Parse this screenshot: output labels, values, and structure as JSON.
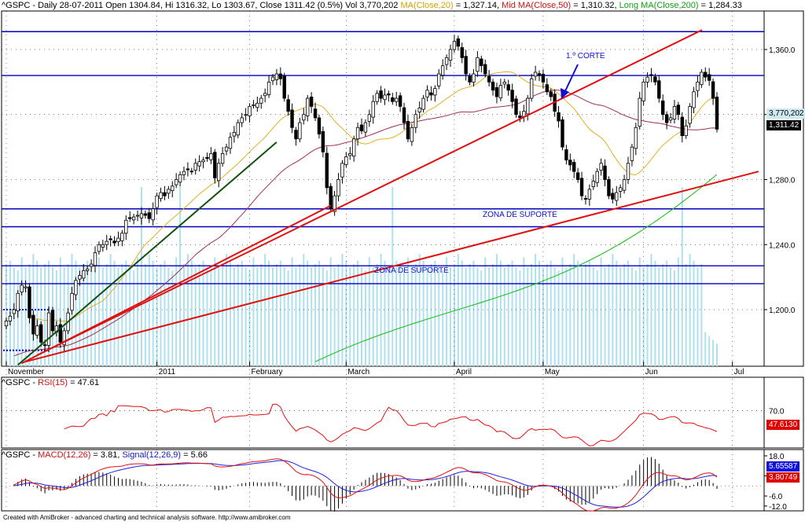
{
  "header_main": {
    "symbol": "^GSPC - Daily 28-07-2011 Open 1304.84, Hi 1316.32, Lo 1303.67, Close 1311.42 (0.5%) Vol 3,770,202",
    "ma20": "MA(Close,20)",
    "ma20_val": " = 1,327.14, ",
    "ma50": "Mid MA(Close,50)",
    "ma50_val": " = 1,310.32, ",
    "ma200": "Long MA(Close,200)",
    "ma200_val": " = 1,284.33"
  },
  "header_rsi": {
    "prefix": "^GSPC - ",
    "name": "RSI(15)",
    "val": " = 47.61"
  },
  "header_macd": {
    "prefix": "^GSPC - ",
    "name": "MACD(12,26)",
    "mid": " = 3.81, ",
    "sig": "Signal(12,26,9)",
    "sigval": " = 5.66"
  },
  "credit": "Created with AmiBroker - advanced charting and technical analysis software. http://www.amibroker.com",
  "annotations": {
    "corte": "1.º CORTE",
    "zona1": "ZONA DE SUPORTE",
    "zona2": "ZONA DE SUPORTE"
  },
  "last_labels": {
    "volume": "3,770,202",
    "close": "1,311.42",
    "rsi": "47.6130",
    "macd_signal": "5.65587",
    "macd": "3.80749"
  },
  "colors": {
    "candle": "#000000",
    "volume": "#aee0ee",
    "ma20": "#e0b020",
    "ma50": "#a03050",
    "ma200": "#20c020",
    "trend_red": "#e01010",
    "trend_green": "#105010",
    "support_blue": "#0000c0",
    "rsi": "#e01010",
    "macd": "#e01010",
    "signal": "#2020e0"
  },
  "chart_data": [
    {
      "type": "candlestick",
      "title": "^GSPC - Daily",
      "ylim": [
        1170,
        1375
      ],
      "y_ticks": [
        "1,360.0",
        "1,320.0",
        "1,280.0",
        "1,240.0",
        "1,200.0"
      ],
      "y_tick_values": [
        1360,
        1320,
        1280,
        1240,
        1200
      ],
      "x_labels": [
        "November",
        "2011",
        "February",
        "March",
        "April",
        "May",
        "Jun",
        "Jul"
      ],
      "x_label_bars": [
        0,
        39,
        63,
        88,
        116,
        139,
        165,
        188
      ],
      "ohlc_range": {
        "start": "2010-11-01",
        "end": "2011-07-28",
        "bars": 214
      },
      "closes_approx": [
        1193,
        1196,
        1200,
        1210,
        1215,
        1214,
        1195,
        1185,
        1190,
        1180,
        1178,
        1198,
        1187,
        1190,
        1180,
        1187,
        1198,
        1210,
        1218,
        1221,
        1224,
        1225,
        1228,
        1235,
        1240,
        1240,
        1242,
        1243,
        1241,
        1244,
        1247,
        1255,
        1256,
        1257,
        1258,
        1259,
        1258,
        1256,
        1262,
        1270,
        1272,
        1270,
        1274,
        1276,
        1280,
        1283,
        1285,
        1286,
        1285,
        1290,
        1291,
        1292,
        1293,
        1296,
        1281,
        1290,
        1296,
        1300,
        1306,
        1309,
        1315,
        1318,
        1320,
        1325,
        1326,
        1327,
        1330,
        1333,
        1340,
        1343,
        1345,
        1342,
        1330,
        1322,
        1312,
        1305,
        1315,
        1320,
        1330,
        1325,
        1318,
        1308,
        1297,
        1275,
        1262,
        1270,
        1280,
        1290,
        1294,
        1296,
        1305,
        1312,
        1310,
        1315,
        1320,
        1328,
        1333,
        1330,
        1332,
        1332,
        1328,
        1330,
        1325,
        1315,
        1305,
        1312,
        1320,
        1324,
        1330,
        1335,
        1332,
        1336,
        1345,
        1350,
        1355,
        1360,
        1365,
        1362,
        1355,
        1345,
        1340,
        1345,
        1355,
        1350,
        1345,
        1340,
        1335,
        1331,
        1338,
        1340,
        1335,
        1328,
        1320,
        1318,
        1322,
        1330,
        1342,
        1346,
        1344,
        1340,
        1334,
        1331,
        1322,
        1316,
        1300,
        1292,
        1289,
        1285,
        1280,
        1270,
        1268,
        1274,
        1279,
        1285,
        1290,
        1280,
        1270,
        1268,
        1272,
        1275,
        1280,
        1290,
        1300,
        1312,
        1330,
        1340,
        1343,
        1344,
        1340,
        1330,
        1320,
        1315,
        1318,
        1325,
        1320,
        1307,
        1313,
        1325,
        1334,
        1340,
        1346,
        1343,
        1341,
        1330,
        1311
      ],
      "trend_lines": [
        "red trendline from November low through March low",
        "red long-term trendline from November low",
        "red line from March low through 1.º CORTE",
        "green steep trendline November to February"
      ],
      "support_lines": [
        1371,
        1344,
        1262,
        1251,
        1227,
        1216
      ],
      "moving_averages": [
        "MA(Close,20)",
        "Mid MA(Close,50)",
        "Long MA(Close,200)"
      ]
    },
    {
      "type": "line",
      "title": "RSI(15)",
      "y_ticks": [
        "70.0"
      ],
      "last_value": 47.61
    },
    {
      "type": "line",
      "title": "MACD(12,26)",
      "series": [
        {
          "name": "MACD(12,26)",
          "last": 3.81
        },
        {
          "name": "Signal(12,26,9)",
          "last": 5.66
        }
      ],
      "y_ticks": [
        "18.0",
        "6.0",
        "-6.0",
        "-12.0"
      ]
    }
  ]
}
